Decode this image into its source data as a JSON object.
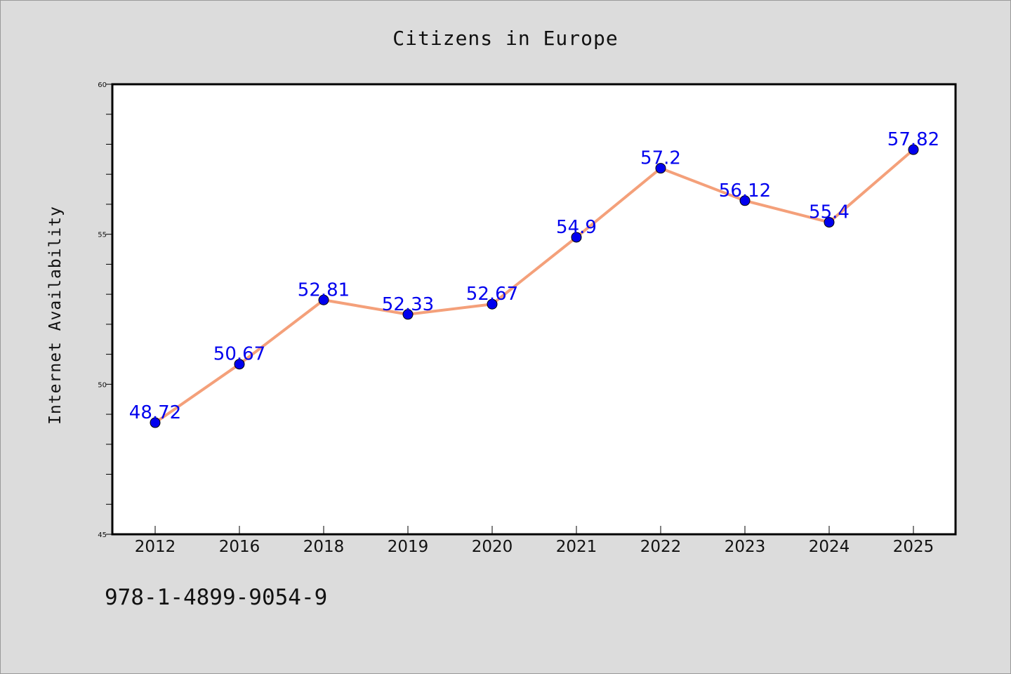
{
  "chart_data": {
    "type": "line",
    "title": "Citizens in Europe",
    "xlabel": "",
    "ylabel": "Internet Availability",
    "categories": [
      "2012",
      "2016",
      "2018",
      "2019",
      "2020",
      "2021",
      "2022",
      "2023",
      "2024",
      "2025"
    ],
    "series": [
      {
        "values": [
          48.72,
          50.67,
          52.81,
          52.33,
          52.67,
          54.9,
          57.2,
          56.12,
          55.4,
          57.82
        ],
        "data_labels": [
          "48.72",
          "50.67",
          "52.81",
          "52.33",
          "52.67",
          "54.9",
          "57.2",
          "56.12",
          "55.4",
          "57.82"
        ],
        "line_color": "#f4a07a",
        "marker_color": "#0000ee",
        "label_color": "#0000ee"
      }
    ],
    "ylim": [
      45,
      60
    ],
    "y_ticks": [
      "45",
      "50",
      "55",
      "60"
    ],
    "grid": false,
    "legend": "none"
  },
  "footnote": "978-1-4899-9054-9",
  "colors": {
    "background": "#dcdcdc",
    "plot_area": "#ffffff",
    "axis": "#000000"
  }
}
